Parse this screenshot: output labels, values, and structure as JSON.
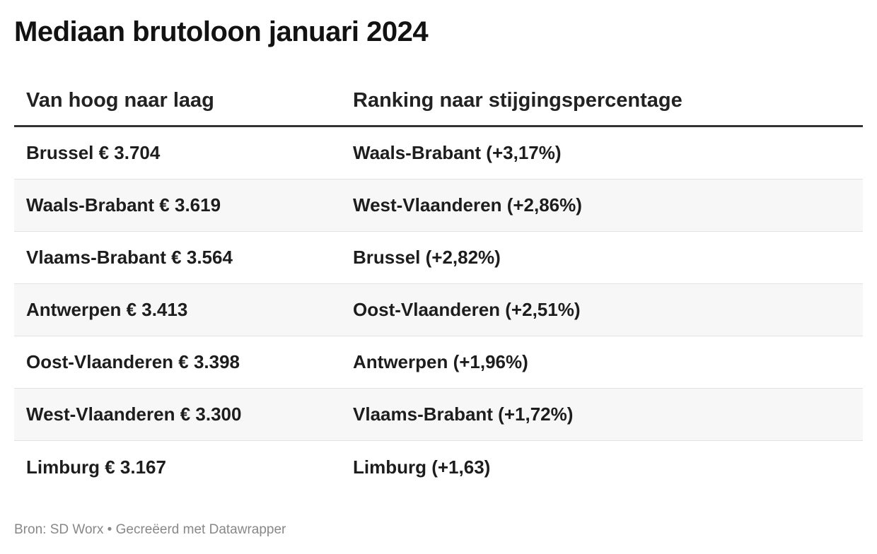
{
  "title": "Mediaan brutoloon januari 2024",
  "table": {
    "headers": [
      "Van hoog naar laag",
      "Ranking naar stijgingspercentage"
    ],
    "rows": [
      [
        "Brussel € 3.704",
        "Waals-Brabant (+3,17%)"
      ],
      [
        "Waals-Brabant € 3.619",
        "West-Vlaanderen (+2,86%)"
      ],
      [
        "Vlaams-Brabant € 3.564",
        "Brussel (+2,82%)"
      ],
      [
        "Antwerpen € 3.413",
        "Oost-Vlaanderen (+2,51%)"
      ],
      [
        "Oost-Vlaanderen € 3.398",
        "Antwerpen (+1,96%)"
      ],
      [
        "West-Vlaanderen € 3.300",
        "Vlaams-Brabant (+1,72%)"
      ],
      [
        "Limburg € 3.167",
        "Limburg (+1,63)"
      ]
    ]
  },
  "footer": {
    "source_label": "Bron:",
    "source": "SD Worx",
    "separator": "•",
    "credit": "Gecreëerd met Datawrapper"
  }
}
